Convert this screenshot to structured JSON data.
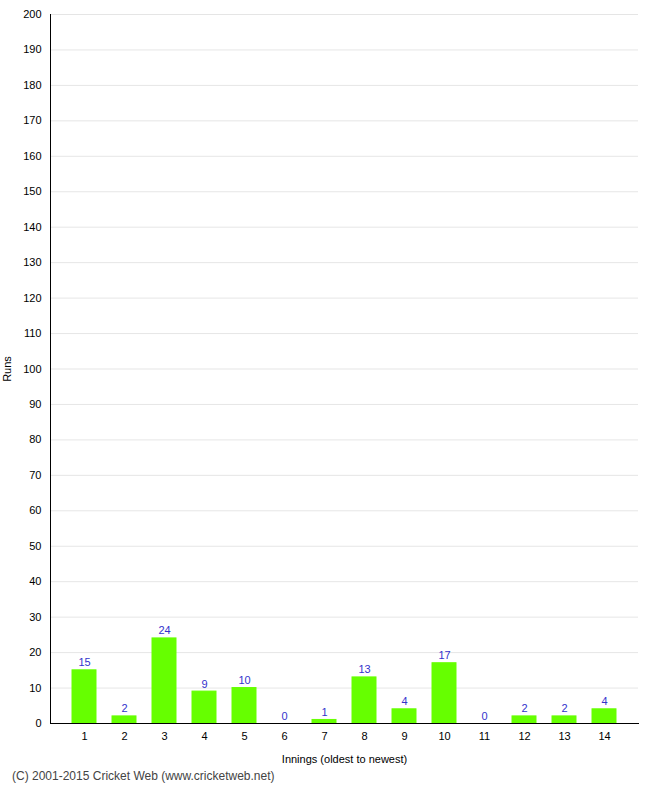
{
  "chart_data": {
    "type": "bar",
    "categories": [
      1,
      2,
      3,
      4,
      5,
      6,
      7,
      8,
      9,
      10,
      11,
      12,
      13,
      14
    ],
    "values": [
      15,
      2,
      24,
      9,
      10,
      0,
      1,
      13,
      4,
      17,
      0,
      2,
      2,
      4
    ],
    "color": "#66ff00",
    "xlabel": "Innings (oldest to newest)",
    "ylabel": "Runs",
    "ylim": [
      0,
      200
    ],
    "yticks": [
      0,
      10,
      20,
      30,
      40,
      50,
      60,
      70,
      80,
      90,
      100,
      110,
      120,
      130,
      140,
      150,
      160,
      170,
      180,
      190,
      200
    ],
    "grid": true,
    "data_labels": true,
    "annotations": [
      "(C) 2001-2015 Cricket Web (www.cricketweb.net)"
    ]
  }
}
